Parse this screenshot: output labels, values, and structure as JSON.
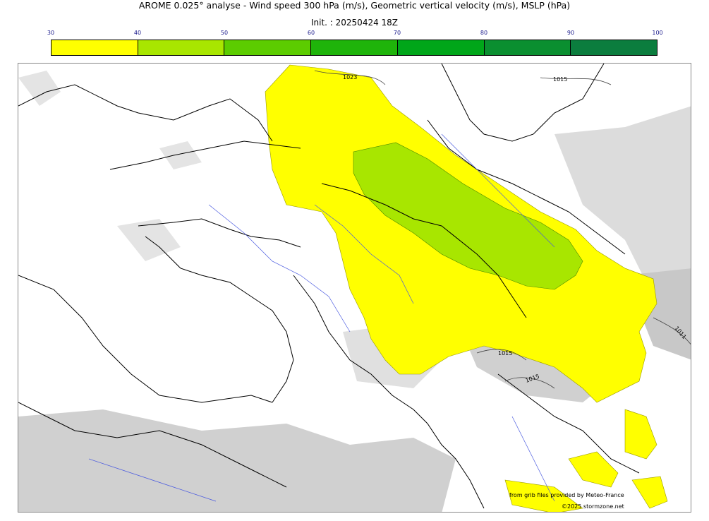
{
  "header": {
    "title": "AROME 0.025° analyse - Wind speed 300 hPa (m/s), Geometric vertical velocity (m/s), MSLP (hPa)",
    "init": "Init. : 20250424 18Z"
  },
  "colorbar": {
    "ticks": [
      "30",
      "40",
      "50",
      "60",
      "70",
      "80",
      "90",
      "100"
    ],
    "colors": [
      "#ffff00",
      "#a8e600",
      "#5ccc00",
      "#1fb40a",
      "#00a619",
      "#0a8f30",
      "#0b7d3e"
    ]
  },
  "isobars": [
    "1023",
    "1015",
    "1011",
    "1015",
    "1015"
  ],
  "credits": {
    "line1": "from grib files provided by Meteo-France",
    "line2": "©2025 stormzone.net"
  }
}
